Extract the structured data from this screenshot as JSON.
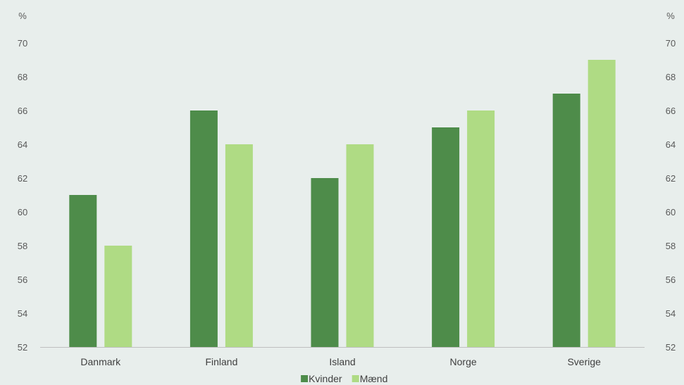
{
  "chart_data": {
    "type": "bar",
    "categories": [
      "Danmark",
      "Finland",
      "Island",
      "Norge",
      "Sverige"
    ],
    "series": [
      {
        "name": "Kvinder",
        "values": [
          61,
          66,
          62,
          65,
          67
        ],
        "color": "#4e8c4a"
      },
      {
        "name": "Mænd",
        "values": [
          58,
          64,
          64,
          66,
          69
        ],
        "color": "#afdb84"
      }
    ],
    "y_unit_left": "%",
    "y_unit_right": "%",
    "ylim": [
      52,
      70
    ],
    "yticks": [
      52,
      54,
      56,
      58,
      60,
      62,
      64,
      66,
      68,
      70
    ],
    "grid": false,
    "legend_position": "bottom-center",
    "colors": {
      "background": "#e8eeec",
      "axis": "#bfbfbf",
      "text": "#595959"
    }
  }
}
